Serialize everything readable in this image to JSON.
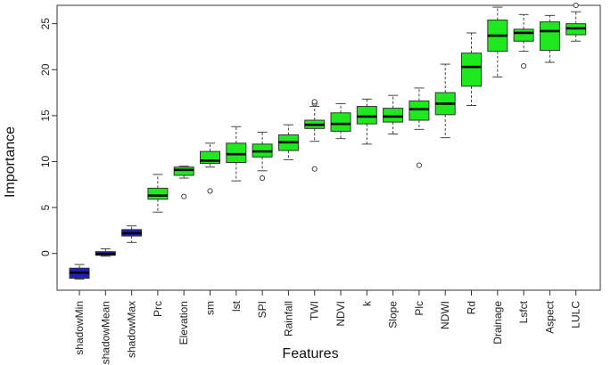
{
  "chart_data": {
    "type": "boxplot",
    "title": "",
    "xlabel": "Features",
    "ylabel": "Importance",
    "ylim": [
      -4,
      27
    ],
    "yticks": [
      0,
      5,
      10,
      15,
      20,
      25
    ],
    "grid": false,
    "colors": {
      "shadow": "#1f1fbf",
      "feature": "#1ee81e",
      "median": "#000000"
    },
    "categories": [
      "shadowMin",
      "shadowMean",
      "shadowMax",
      "Prc",
      "Elevation",
      "sm",
      "lst",
      "SPI",
      "Rainfall",
      "TWI",
      "NDVI",
      "k",
      "Slope",
      "Plc",
      "NDWI",
      "Rd",
      "Drainage",
      "Lsfct",
      "Aspect",
      "LULC"
    ],
    "boxes": [
      {
        "name": "shadowMin",
        "group": "shadow",
        "min": -2.8,
        "q1": -2.7,
        "median": -2.1,
        "q3": -1.6,
        "max": -1.2,
        "outliers": []
      },
      {
        "name": "shadowMean",
        "group": "shadow",
        "min": -0.3,
        "q1": -0.2,
        "median": -0.05,
        "q3": 0.2,
        "max": 0.5,
        "outliers": []
      },
      {
        "name": "shadowMax",
        "group": "shadow",
        "min": 1.2,
        "q1": 1.9,
        "median": 2.2,
        "q3": 2.6,
        "max": 3.0,
        "outliers": []
      },
      {
        "name": "Prc",
        "group": "feature",
        "min": 4.5,
        "q1": 5.9,
        "median": 6.3,
        "q3": 7.1,
        "max": 8.6,
        "outliers": []
      },
      {
        "name": "Elevation",
        "group": "feature",
        "min": 8.2,
        "q1": 8.5,
        "median": 9.1,
        "q3": 9.4,
        "max": 9.5,
        "outliers": [
          6.2
        ]
      },
      {
        "name": "sm",
        "group": "feature",
        "min": 9.4,
        "q1": 9.8,
        "median": 10.1,
        "q3": 11.1,
        "max": 12.0,
        "outliers": [
          6.8
        ]
      },
      {
        "name": "lst",
        "group": "feature",
        "min": 7.9,
        "q1": 9.9,
        "median": 10.8,
        "q3": 12.0,
        "max": 13.8,
        "outliers": []
      },
      {
        "name": "SPI",
        "group": "feature",
        "min": 9.0,
        "q1": 10.5,
        "median": 11.1,
        "q3": 11.9,
        "max": 13.2,
        "outliers": [
          8.2
        ]
      },
      {
        "name": "Rainfall",
        "group": "feature",
        "min": 10.2,
        "q1": 11.2,
        "median": 12.1,
        "q3": 12.9,
        "max": 14.0,
        "outliers": []
      },
      {
        "name": "TWI",
        "group": "feature",
        "min": 12.2,
        "q1": 13.6,
        "median": 14.0,
        "q3": 14.5,
        "max": 16.0,
        "outliers": [
          9.2,
          16.3,
          16.5
        ]
      },
      {
        "name": "NDVI",
        "group": "feature",
        "min": 12.5,
        "q1": 13.3,
        "median": 14.1,
        "q3": 15.3,
        "max": 16.3,
        "outliers": []
      },
      {
        "name": "k",
        "group": "feature",
        "min": 11.9,
        "q1": 14.1,
        "median": 14.9,
        "q3": 16.0,
        "max": 16.8,
        "outliers": []
      },
      {
        "name": "Slope",
        "group": "feature",
        "min": 13.0,
        "q1": 14.3,
        "median": 14.9,
        "q3": 15.8,
        "max": 17.2,
        "outliers": []
      },
      {
        "name": "Plc",
        "group": "feature",
        "min": 13.5,
        "q1": 14.5,
        "median": 15.7,
        "q3": 16.6,
        "max": 18.0,
        "outliers": [
          9.6
        ]
      },
      {
        "name": "NDWI",
        "group": "feature",
        "min": 12.6,
        "q1": 15.1,
        "median": 16.3,
        "q3": 17.5,
        "max": 20.6,
        "outliers": []
      },
      {
        "name": "Rd",
        "group": "feature",
        "min": 16.1,
        "q1": 18.2,
        "median": 20.3,
        "q3": 21.8,
        "max": 24.0,
        "outliers": []
      },
      {
        "name": "Drainage",
        "group": "feature",
        "min": 19.2,
        "q1": 22.0,
        "median": 23.7,
        "q3": 25.4,
        "max": 26.8,
        "outliers": []
      },
      {
        "name": "Lsfct",
        "group": "feature",
        "min": 22.0,
        "q1": 23.1,
        "median": 24.0,
        "q3": 24.4,
        "max": 26.0,
        "outliers": [
          20.4
        ]
      },
      {
        "name": "Aspect",
        "group": "feature",
        "min": 20.8,
        "q1": 22.1,
        "median": 24.2,
        "q3": 25.2,
        "max": 25.9,
        "outliers": []
      },
      {
        "name": "LULC",
        "group": "feature",
        "min": 23.1,
        "q1": 23.8,
        "median": 24.5,
        "q3": 25.0,
        "max": 26.3,
        "outliers": [
          27.0
        ]
      }
    ]
  }
}
